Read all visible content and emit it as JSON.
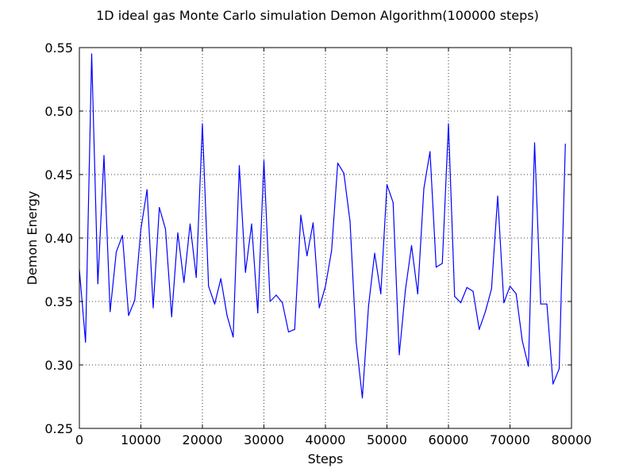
{
  "colors": {
    "line": "#0000ff",
    "frame": "#000000",
    "grid": "#000000",
    "background": "#ffffff"
  },
  "chart_data": {
    "type": "line",
    "title": "1D ideal gas Monte Carlo simulation Demon Algorithm(100000 steps)",
    "xlabel": "Steps",
    "ylabel": "Demon Energy",
    "xlim": [
      0,
      80000
    ],
    "ylim": [
      0.25,
      0.55
    ],
    "grid": true,
    "grid_style": "dotted",
    "legend": "none",
    "xticks": [
      0,
      10000,
      20000,
      30000,
      40000,
      50000,
      60000,
      70000,
      80000
    ],
    "yticks": [
      0.25,
      0.3,
      0.35,
      0.4,
      0.45,
      0.5,
      0.55
    ],
    "xtick_labels": [
      "0",
      "10000",
      "20000",
      "30000",
      "40000",
      "50000",
      "60000",
      "70000",
      "80000"
    ],
    "ytick_labels": [
      "0.25",
      "0.30",
      "0.35",
      "0.40",
      "0.45",
      "0.50",
      "0.55"
    ],
    "series": [
      {
        "color": "#0000ff",
        "x": [
          0,
          1000,
          2000,
          3000,
          4000,
          5000,
          6000,
          7000,
          8000,
          9000,
          10000,
          11000,
          12000,
          13000,
          14000,
          15000,
          16000,
          17000,
          18000,
          19000,
          20000,
          21000,
          22000,
          23000,
          24000,
          25000,
          26000,
          27000,
          28000,
          29000,
          30000,
          31000,
          32000,
          33000,
          34000,
          35000,
          36000,
          37000,
          38000,
          39000,
          40000,
          41000,
          42000,
          43000,
          44000,
          45000,
          46000,
          47000,
          48000,
          49000,
          50000,
          51000,
          52000,
          53000,
          54000,
          55000,
          56000,
          57000,
          58000,
          59000,
          60000,
          61000,
          62000,
          63000,
          64000,
          65000,
          66000,
          67000,
          68000,
          69000,
          70000,
          71000,
          72000,
          73000,
          74000,
          75000,
          76000,
          77000,
          78000,
          79000
        ],
        "y": [
          0.375,
          0.318,
          0.545,
          0.364,
          0.465,
          0.342,
          0.389,
          0.402,
          0.339,
          0.351,
          0.407,
          0.438,
          0.345,
          0.424,
          0.407,
          0.338,
          0.404,
          0.365,
          0.411,
          0.369,
          0.49,
          0.362,
          0.348,
          0.368,
          0.339,
          0.322,
          0.457,
          0.373,
          0.411,
          0.341,
          0.461,
          0.35,
          0.355,
          0.349,
          0.326,
          0.328,
          0.418,
          0.386,
          0.412,
          0.345,
          0.362,
          0.39,
          0.459,
          0.451,
          0.413,
          0.318,
          0.274,
          0.346,
          0.388,
          0.356,
          0.442,
          0.428,
          0.308,
          0.359,
          0.394,
          0.356,
          0.439,
          0.468,
          0.377,
          0.38,
          0.49,
          0.354,
          0.349,
          0.361,
          0.358,
          0.328,
          0.342,
          0.36,
          0.433,
          0.349,
          0.362,
          0.356,
          0.319,
          0.299,
          0.475,
          0.348,
          0.348,
          0.285,
          0.297,
          0.474
        ]
      }
    ]
  }
}
